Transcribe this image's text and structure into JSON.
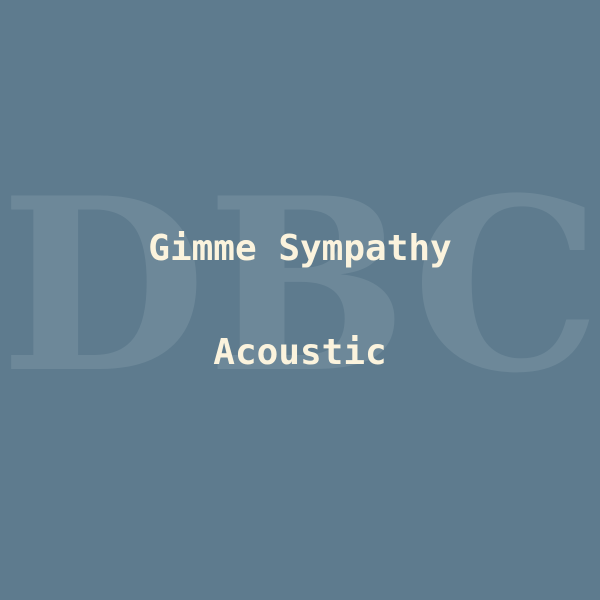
{
  "cover": {
    "watermark": "DBC",
    "title": "Gimme Sympathy",
    "subtitle": "Acoustic",
    "background_color": "#5e7b8e",
    "watermark_color": "#6d8899",
    "text_color": "#fbf3dd"
  }
}
